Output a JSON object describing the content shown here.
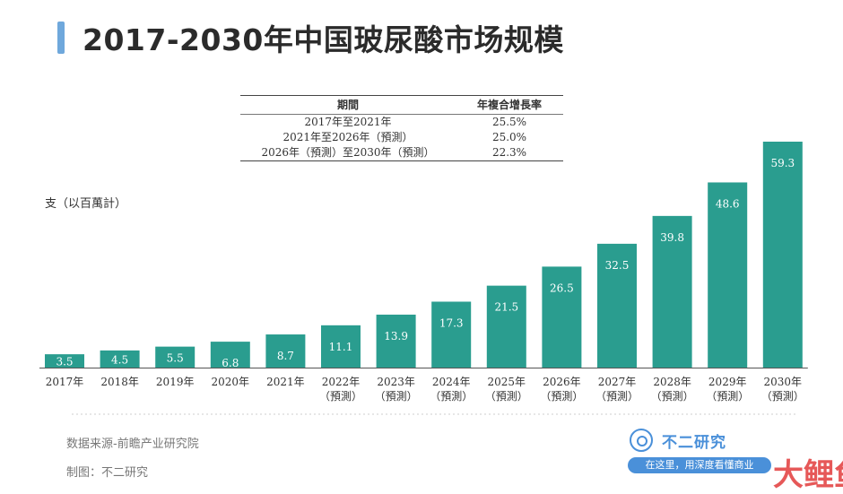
{
  "title": "2017-2030年中国玻尿酸市场规模",
  "cagr_table": {
    "headers": [
      "期間",
      "年複合增長率"
    ],
    "rows": [
      {
        "period": "2017年至2021年",
        "rate": "25.5%"
      },
      {
        "period": "2021年至2026年（預測）",
        "rate": "25.0%"
      },
      {
        "period": "2026年（預測）至2030年（預測）",
        "rate": "22.3%"
      }
    ]
  },
  "unit_label": "支（以百萬計）",
  "colors": {
    "bar": "#2a9d8f",
    "bar_label": "#ffffff",
    "axis": "#555555",
    "title_accent": "#6fa8dc"
  },
  "chart_data": {
    "type": "bar",
    "categories": [
      "2017年",
      "2018年",
      "2019年",
      "2020年",
      "2021年",
      "2022年",
      "2023年",
      "2024年",
      "2025年",
      "2026年",
      "2027年",
      "2028年",
      "2029年",
      "2030年"
    ],
    "category_sublabels": [
      "",
      "",
      "",
      "",
      "",
      "（預測）",
      "（預測）",
      "（預測）",
      "（預測）",
      "（預測）",
      "（預測）",
      "（預測）",
      "（預測）",
      "（預測）"
    ],
    "values": [
      3.5,
      4.5,
      5.5,
      6.8,
      8.7,
      11.1,
      13.9,
      17.3,
      21.5,
      26.5,
      32.5,
      39.8,
      48.6,
      59.3
    ],
    "value_labels": [
      "3.5",
      "4.5",
      "5.5",
      "6.8",
      "8.7",
      "11.1",
      "13.9",
      "17.3",
      "21.5",
      "26.5",
      "32.5",
      "39.8",
      "48.6",
      "59.3"
    ],
    "ylabel": "支（以百萬計）",
    "ylim": [
      0,
      59.3
    ],
    "grid": false
  },
  "footer": {
    "source": "数据来源-前瞻产业研究院",
    "maker": "制图：不二研究",
    "brand": "不二研究",
    "slogan": "在这里，用深度看懂商业",
    "watermark": "大鲤鱼"
  }
}
